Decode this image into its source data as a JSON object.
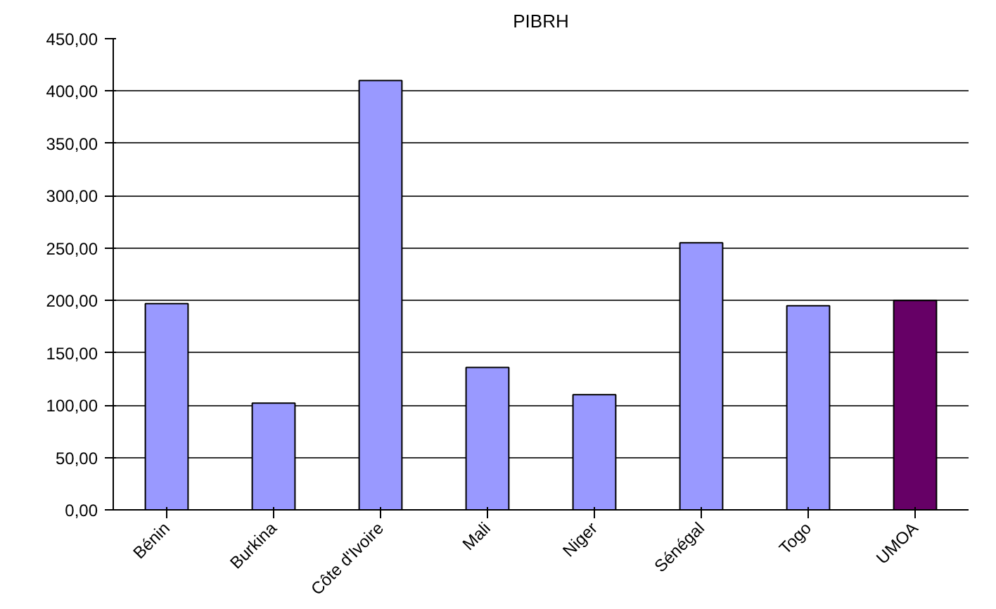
{
  "chart_data": {
    "type": "bar",
    "title": "PIBRH",
    "categories": [
      "Bénin",
      "Burkina",
      "Côte d'Ivoire",
      "Mali",
      "Niger",
      "Sénégal",
      "Togo",
      "UMOA"
    ],
    "values": [
      197,
      102,
      410,
      136,
      110,
      255,
      195,
      200
    ],
    "colors": [
      "#9999ff",
      "#9999ff",
      "#9999ff",
      "#9999ff",
      "#9999ff",
      "#9999ff",
      "#9999ff",
      "#660066"
    ],
    "ylim": [
      0,
      450
    ],
    "yticks": [
      {
        "value": 0,
        "label": "0,00"
      },
      {
        "value": 50,
        "label": "50,00"
      },
      {
        "value": 100,
        "label": "100,00"
      },
      {
        "value": 150,
        "label": "150,00"
      },
      {
        "value": 200,
        "label": "200,00"
      },
      {
        "value": 250,
        "label": "250,00"
      },
      {
        "value": 300,
        "label": "300,00"
      },
      {
        "value": 350,
        "label": "350,00"
      },
      {
        "value": 400,
        "label": "400,00"
      },
      {
        "value": 450,
        "label": "450,00"
      }
    ],
    "grid": "y"
  }
}
